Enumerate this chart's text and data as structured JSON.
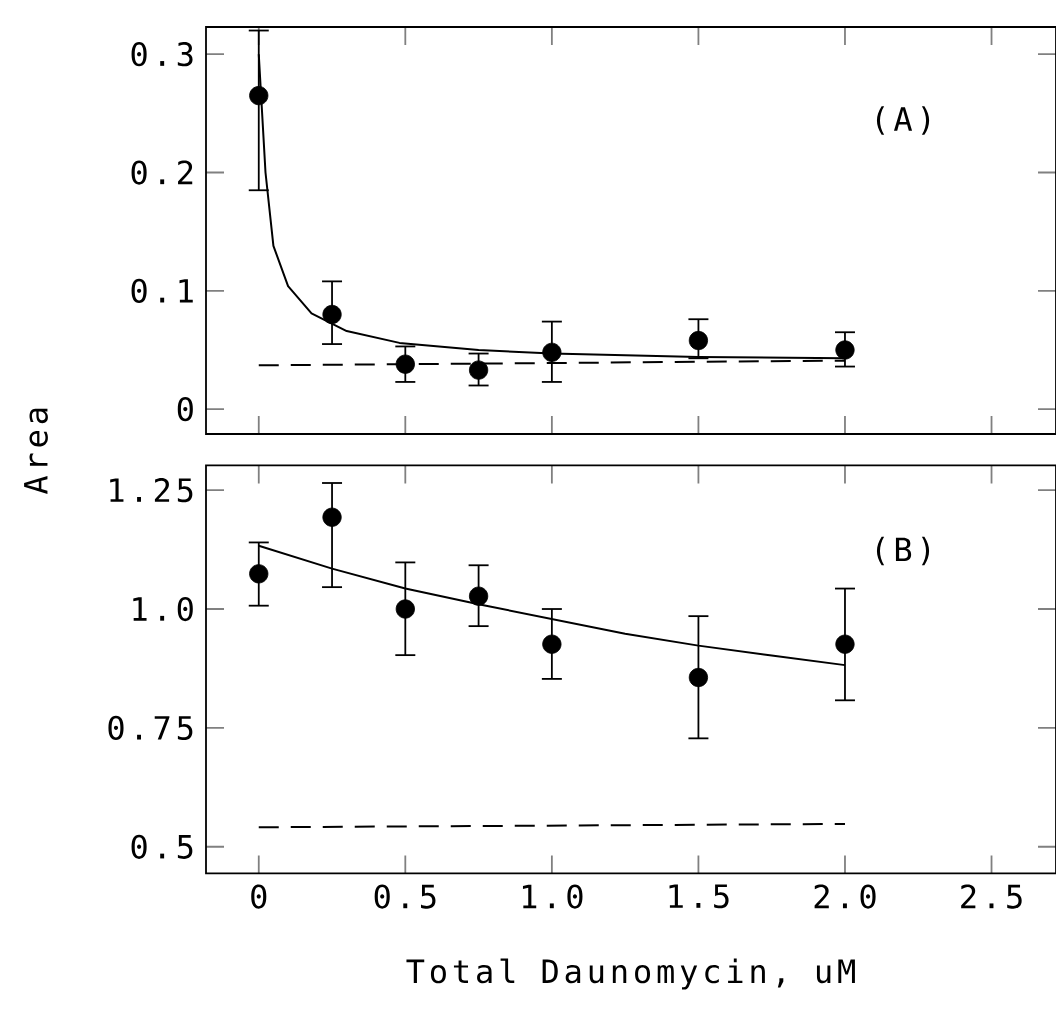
{
  "chart_data": [
    {
      "type": "scatter",
      "ylabel": "Area",
      "annotations": [
        "(A)"
      ],
      "xlim": [
        -0.18,
        2.72
      ],
      "xticks": [
        0,
        0.5,
        1,
        1.5,
        2,
        2.5
      ],
      "ylim": [
        -0.021,
        0.323
      ],
      "yticks": [
        0,
        0.1,
        0.2,
        0.3
      ],
      "tick_labels": "y",
      "series": [
        {
          "marker": "circle",
          "color": "#000000",
          "x": [
            0,
            0.25,
            0.5,
            0.75,
            1,
            1.5,
            2
          ],
          "values": [
            0.265,
            0.08,
            0.038,
            0.033,
            0.048,
            0.058,
            0.05
          ],
          "errors": [
            [
              0.185,
              0.32
            ],
            [
              0.055,
              0.108
            ],
            [
              0.023,
              0.053
            ],
            [
              0.02,
              0.047
            ],
            [
              0.023,
              0.074
            ],
            [
              0.043,
              0.076
            ],
            [
              0.036,
              0.065
            ]
          ]
        },
        {
          "type": "line",
          "line_style": "solid",
          "color": "#000000",
          "x": [
            0,
            0.023,
            0.05,
            0.1,
            0.18,
            0.3,
            0.48,
            0.75,
            1,
            1.5,
            2
          ],
          "values": [
            0.3,
            0.2,
            0.138,
            0.104,
            0.081,
            0.066,
            0.056,
            0.05,
            0.047,
            0.044,
            0.043
          ]
        },
        {
          "type": "line",
          "line_style": "dashed",
          "color": "#000000",
          "x": [
            0,
            2
          ],
          "values": [
            0.037,
            0.041
          ]
        }
      ]
    },
    {
      "type": "scatter",
      "xlabel": "Total Daunomycin, uM",
      "annotations": [
        "(B)"
      ],
      "xlim": [
        -0.18,
        2.72
      ],
      "xticks": [
        0,
        0.5,
        {
          "value": 1,
          "label": "1.0"
        },
        1.5,
        {
          "value": 2,
          "label": "2.0"
        },
        2.5
      ],
      "ylim": [
        0.444,
        1.302
      ],
      "yticks": [
        0.5,
        0.75,
        {
          "value": 1,
          "label": "1.0"
        },
        1.25
      ],
      "series": [
        {
          "marker": "circle",
          "color": "#000000",
          "x": [
            0,
            0.25,
            0.5,
            0.75,
            1,
            1.5,
            2
          ],
          "values": [
            1.074,
            1.193,
            1.0,
            1.027,
            0.926,
            0.856,
            0.926
          ],
          "errors": [
            [
              1.007,
              1.14
            ],
            [
              1.046,
              1.265
            ],
            [
              0.903,
              1.098
            ],
            [
              0.964,
              1.092
            ],
            [
              0.853,
              1.0
            ],
            [
              0.728,
              0.985
            ],
            [
              0.808,
              1.043
            ]
          ]
        },
        {
          "type": "line",
          "line_style": "solid",
          "color": "#000000",
          "x": [
            0,
            0.25,
            0.5,
            0.75,
            1,
            1.25,
            1.5,
            1.75,
            2
          ],
          "values": [
            1.133,
            1.085,
            1.043,
            1.01,
            0.979,
            0.948,
            0.923,
            0.902,
            0.882
          ]
        },
        {
          "type": "line",
          "line_style": "dashed",
          "color": "#000000",
          "x": [
            0,
            2
          ],
          "values": [
            0.541,
            0.548
          ]
        }
      ]
    }
  ]
}
